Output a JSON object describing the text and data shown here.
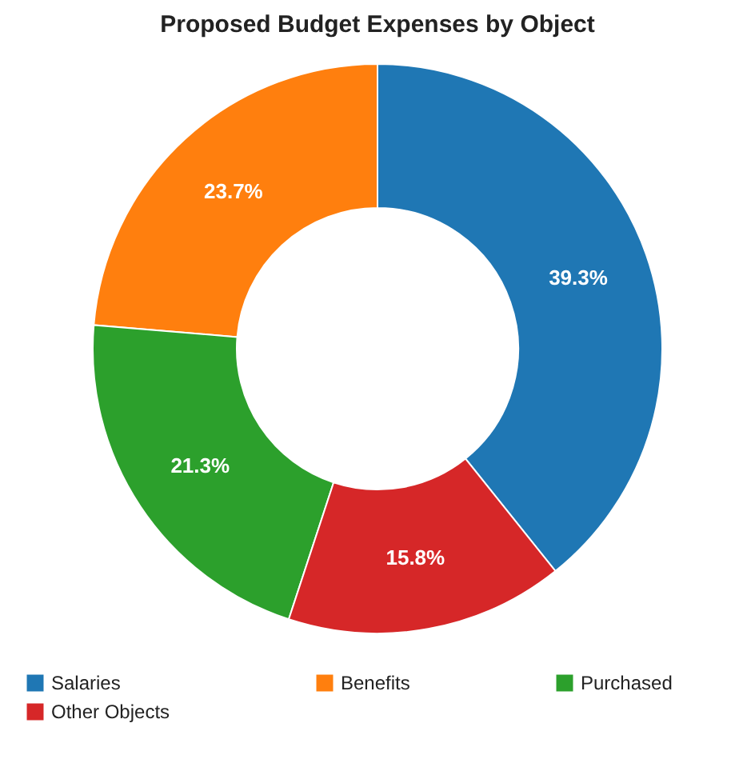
{
  "chart_data": {
    "type": "donut",
    "title": "Proposed Budget Expenses by Object",
    "categories": [
      "Salaries",
      "Benefits",
      "Purchased",
      "Other Objects"
    ],
    "values": [
      39.3,
      23.7,
      21.3,
      15.8
    ],
    "value_labels": [
      "39.3%",
      "23.7%",
      "21.3%",
      "15.8%"
    ],
    "colors": [
      "#1f77b4",
      "#ff7f0e",
      "#2ca02c",
      "#d62728"
    ],
    "legend": "bottom"
  }
}
